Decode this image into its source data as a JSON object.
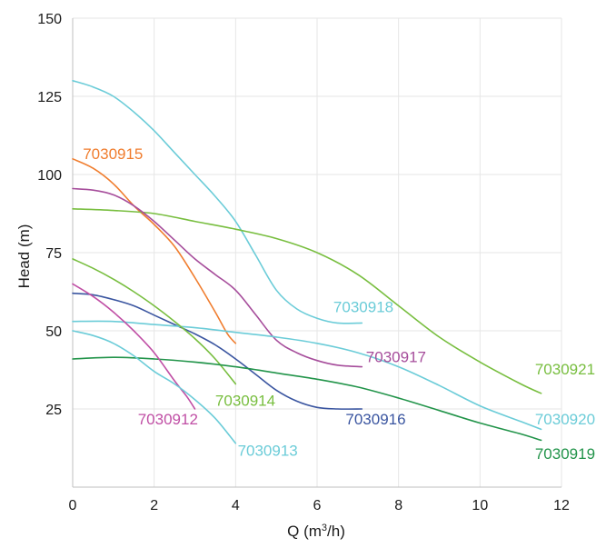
{
  "chart_data": {
    "type": "line",
    "title": "",
    "xlabel_prefix": "Q (m",
    "xlabel_sup": "3",
    "xlabel_suffix": "/h)",
    "ylabel": "Head (m)",
    "xlim": [
      0,
      12
    ],
    "ylim": [
      0,
      150
    ],
    "xticks": [
      0,
      2,
      4,
      6,
      8,
      10,
      12
    ],
    "yticks": [
      25,
      50,
      75,
      100,
      125,
      150
    ],
    "grid": true,
    "legend": "inline labels",
    "series": [
      {
        "name": "7030915",
        "color": "#F07D2E",
        "label_at": [
          0.25,
          105
        ],
        "x": [
          0,
          0.5,
          1,
          1.5,
          2,
          2.5,
          3,
          3.5,
          3.8,
          4
        ],
        "y": [
          105,
          102,
          97,
          90,
          84,
          77,
          67,
          56,
          49,
          46
        ]
      },
      {
        "name": "7030918",
        "color": "#6BCCD8",
        "label_at": [
          6.4,
          56
        ],
        "x": [
          0,
          0.5,
          1,
          1.5,
          2,
          2.5,
          3,
          3.5,
          4,
          4.5,
          5,
          5.5,
          6,
          6.5,
          7.1
        ],
        "y": [
          130,
          128,
          125,
          120,
          114,
          107,
          100,
          93,
          85,
          74,
          63,
          57,
          54,
          52.5,
          52.5
        ]
      },
      {
        "name": "7030921",
        "color": "#78BE3F",
        "label_at": [
          11.35,
          36
        ],
        "x": [
          0,
          1,
          2,
          3,
          4,
          5,
          6,
          7,
          8,
          9,
          10,
          11,
          11.5
        ],
        "y": [
          89,
          88.5,
          87.5,
          85,
          82.5,
          79.5,
          75,
          68,
          58,
          48,
          40,
          33,
          30
        ]
      },
      {
        "name": "7030917",
        "color": "#A64D9B",
        "label_at": [
          7.2,
          40
        ],
        "x": [
          0,
          0.5,
          1,
          1.5,
          2,
          2.5,
          3,
          3.5,
          4,
          4.5,
          5,
          5.5,
          6,
          6.5,
          7.1
        ],
        "y": [
          95.5,
          95,
          93.5,
          90,
          85,
          79,
          73,
          68,
          63,
          55,
          47,
          43,
          40.5,
          39,
          38.5
        ]
      },
      {
        "name": "7030916",
        "color": "#3A55A0",
        "label_at": [
          6.7,
          20
        ],
        "x": [
          0,
          0.5,
          1,
          1.5,
          2,
          2.5,
          3,
          3.5,
          4,
          4.5,
          5,
          5.5,
          6,
          6.5,
          7.1
        ],
        "y": [
          62,
          61.5,
          60,
          58,
          55,
          52,
          49,
          45.5,
          41,
          36,
          31,
          27.5,
          25.5,
          25,
          25
        ]
      },
      {
        "name": "7030920",
        "color": "#6BCCD8",
        "label_at": [
          11.35,
          20
        ],
        "x": [
          0,
          1,
          2,
          3,
          4,
          5,
          6,
          7,
          8,
          9,
          10,
          11,
          11.5
        ],
        "y": [
          53,
          53,
          52,
          51,
          49.5,
          48,
          46,
          43,
          38.5,
          32.5,
          26,
          21,
          18.5
        ]
      },
      {
        "name": "7030914",
        "color": "#78BE3F",
        "label_at": [
          3.5,
          26
        ],
        "x": [
          0,
          0.5,
          1,
          1.5,
          2,
          2.5,
          3,
          3.5,
          4
        ],
        "y": [
          73,
          70,
          66.5,
          62.5,
          58,
          53,
          47.5,
          41,
          33
        ]
      },
      {
        "name": "7030919",
        "color": "#22944A",
        "label_at": [
          11.35,
          9
        ],
        "x": [
          0,
          1,
          2,
          3,
          4,
          5,
          6,
          7,
          8,
          9,
          10,
          11,
          11.5
        ],
        "y": [
          41,
          41.5,
          41,
          40,
          38.5,
          36.5,
          34.5,
          32,
          28.5,
          24.5,
          20.5,
          17,
          15
        ]
      },
      {
        "name": "7030912",
        "color": "#C04FA5",
        "label_at": [
          1.6,
          20
        ],
        "x": [
          0,
          0.5,
          1,
          1.5,
          2,
          2.5,
          2.8,
          3
        ],
        "y": [
          65,
          61,
          56,
          50,
          43,
          34,
          29,
          25
        ]
      },
      {
        "name": "7030913",
        "color": "#6BCCD8",
        "label_at": [
          4.05,
          10
        ],
        "x": [
          0,
          0.5,
          1,
          1.5,
          2,
          2.5,
          3,
          3.5,
          4
        ],
        "y": [
          50,
          48.5,
          46,
          42,
          37,
          33,
          28,
          22,
          14
        ]
      }
    ]
  }
}
